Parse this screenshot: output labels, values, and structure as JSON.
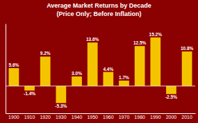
{
  "chart_data": {
    "type": "bar",
    "title": "Average Market Returns by Decade",
    "subtitle": "(Price Only; Before Inflation)",
    "categories": [
      "1900",
      "1910",
      "1920",
      "1930",
      "1940",
      "1950",
      "1960",
      "1970",
      "1980",
      "1990",
      "2000",
      "2010"
    ],
    "values": [
      5.6,
      -1.4,
      9.2,
      -5.3,
      3.0,
      13.6,
      4.4,
      1.7,
      12.5,
      15.2,
      -2.5,
      10.8
    ],
    "value_labels": [
      "5.6%",
      "-1.4%",
      "9.2%",
      "-5.3%",
      "3.0%",
      "13.6%",
      "4.4%",
      "1.7%",
      "12.5%",
      "15.2%",
      "-2.5%",
      "10.8%"
    ],
    "data_labels": true,
    "color": "#F5C400",
    "ylim": [
      -8.5,
      19.5
    ],
    "grid": false,
    "tick_labels": "x"
  }
}
